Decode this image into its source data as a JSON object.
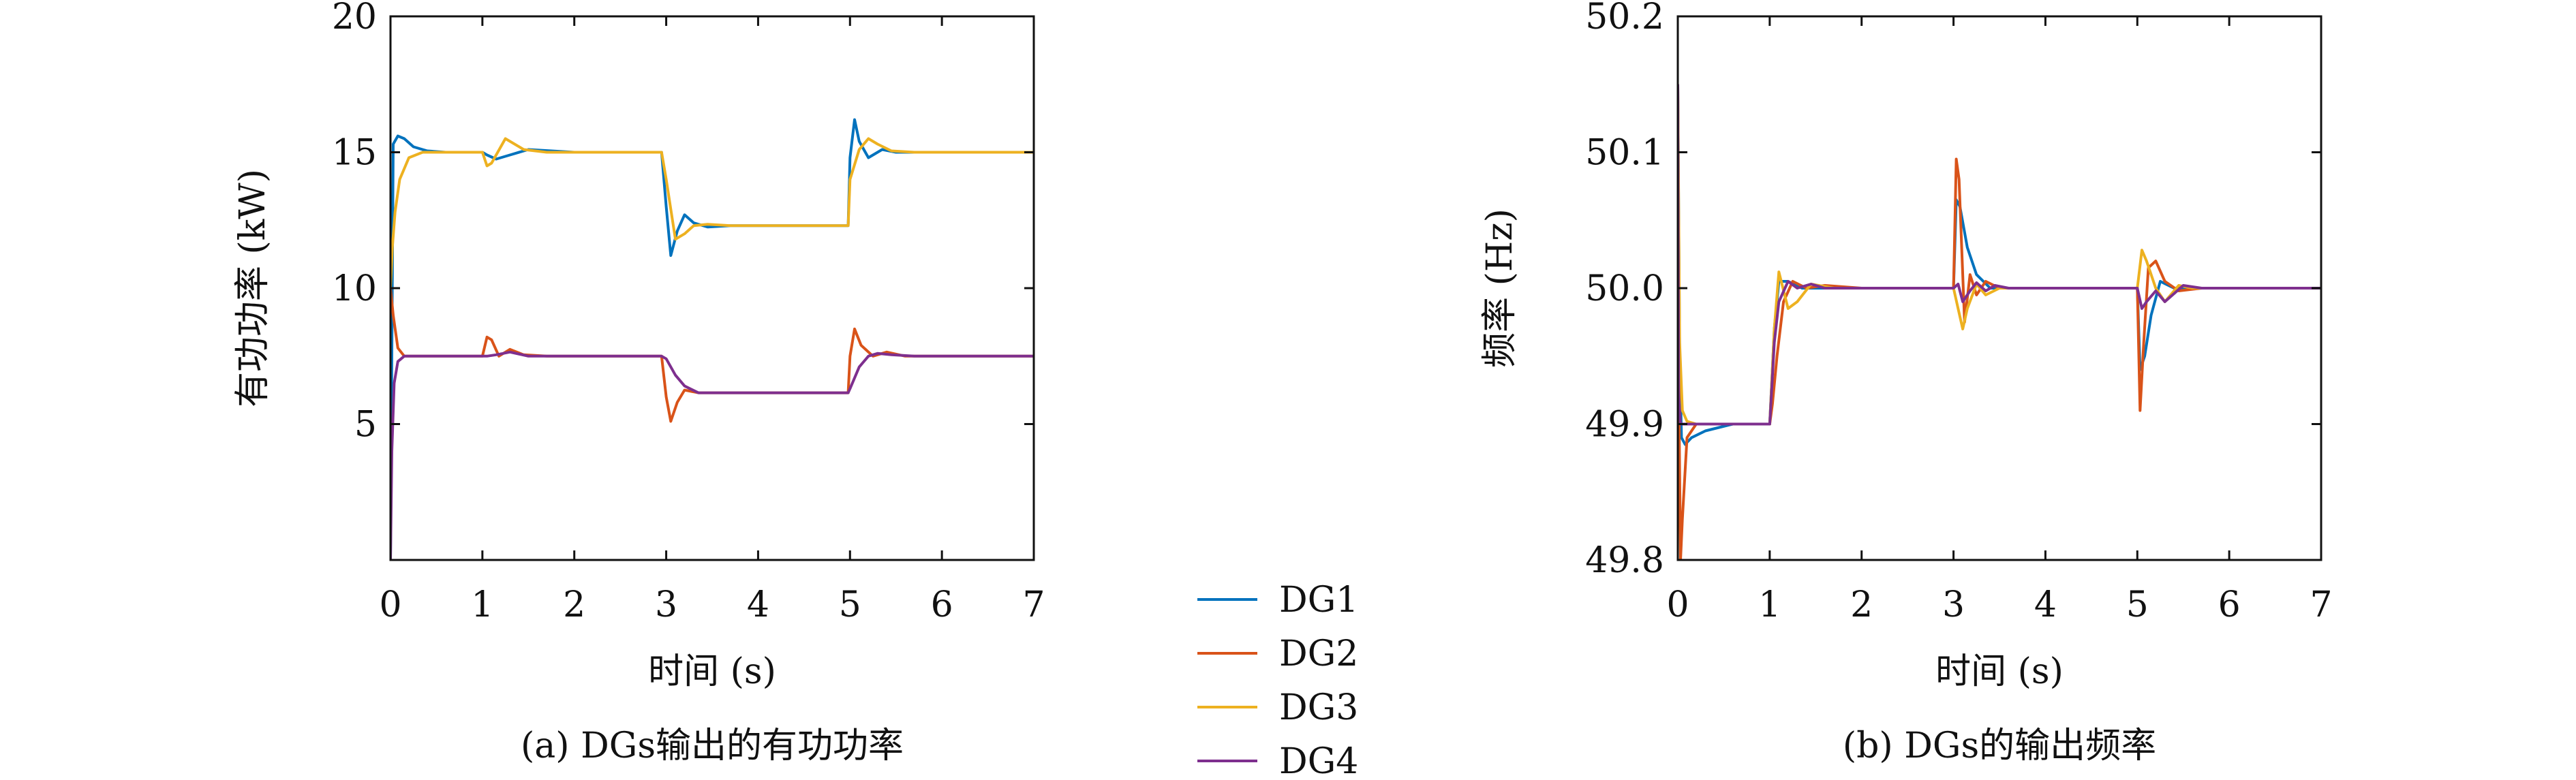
{
  "chart_data": [
    {
      "type": "line",
      "panel": "a",
      "caption": "(a) DGs输出的有功功率",
      "xlabel": "时间 (s)",
      "ylabel": "有功功率 (kW)",
      "xlim": [
        0,
        7
      ],
      "ylim": [
        0,
        20
      ],
      "xticks": [
        "0",
        "1",
        "2",
        "3",
        "4",
        "5",
        "6",
        "7"
      ],
      "xtick_values": [
        0,
        1,
        2,
        3,
        4,
        5,
        6,
        7
      ],
      "yticks": [
        "5",
        "10",
        "15",
        "20"
      ],
      "ytick_values": [
        5,
        10,
        15,
        20
      ],
      "grid": false,
      "series": [
        {
          "name": "DG1",
          "color": "#0072BD",
          "x": [
            0,
            0.03,
            0.08,
            0.15,
            0.25,
            0.4,
            0.6,
            1.0,
            1.05,
            1.15,
            1.3,
            1.5,
            2.0,
            2.95,
            3.0,
            3.05,
            3.12,
            3.2,
            3.3,
            3.45,
            3.7,
            4.0,
            4.98,
            5.0,
            5.05,
            5.1,
            5.2,
            5.35,
            5.5,
            5.8,
            7.0
          ],
          "y": [
            0,
            15.3,
            15.6,
            15.5,
            15.2,
            15.05,
            15.0,
            15.0,
            14.9,
            14.75,
            14.9,
            15.1,
            15.0,
            15.0,
            13.0,
            11.2,
            12.1,
            12.7,
            12.4,
            12.25,
            12.3,
            12.3,
            12.3,
            14.8,
            16.2,
            15.4,
            14.8,
            15.1,
            15.0,
            15.0,
            15.0
          ]
        },
        {
          "name": "DG2",
          "color": "#D95319",
          "x": [
            0,
            0.03,
            0.08,
            0.15,
            0.3,
            1.0,
            1.05,
            1.1,
            1.18,
            1.3,
            1.45,
            1.7,
            2.95,
            3.0,
            3.05,
            3.12,
            3.2,
            3.35,
            3.6,
            4.98,
            5.0,
            5.05,
            5.12,
            5.25,
            5.4,
            5.6,
            7.0
          ],
          "y": [
            10.0,
            9.0,
            7.8,
            7.5,
            7.5,
            7.5,
            8.2,
            8.1,
            7.5,
            7.75,
            7.55,
            7.5,
            7.5,
            6.0,
            5.1,
            5.8,
            6.25,
            6.15,
            6.15,
            6.15,
            7.5,
            8.5,
            7.9,
            7.5,
            7.65,
            7.5,
            7.5
          ]
        },
        {
          "name": "DG3",
          "color": "#EDB120",
          "x": [
            0,
            0.02,
            0.05,
            0.1,
            0.2,
            0.35,
            0.6,
            1.0,
            1.05,
            1.1,
            1.25,
            1.45,
            1.7,
            2.95,
            3.0,
            3.1,
            3.2,
            3.3,
            3.45,
            3.7,
            4.98,
            5.0,
            5.1,
            5.2,
            5.3,
            5.45,
            5.7,
            7.0
          ],
          "y": [
            10.0,
            11.5,
            12.8,
            14.0,
            14.8,
            15.0,
            15.0,
            15.0,
            14.5,
            14.6,
            15.5,
            15.1,
            15.0,
            15.0,
            14.0,
            11.8,
            12.0,
            12.3,
            12.35,
            12.3,
            12.3,
            14.0,
            15.1,
            15.5,
            15.3,
            15.05,
            15.0,
            15.0
          ]
        },
        {
          "name": "DG4",
          "color": "#7E2F8E",
          "x": [
            0,
            0.015,
            0.04,
            0.08,
            0.15,
            0.3,
            1.0,
            1.05,
            1.15,
            1.3,
            1.5,
            2.95,
            3.0,
            3.1,
            3.2,
            3.35,
            3.5,
            3.7,
            4.98,
            5.0,
            5.1,
            5.2,
            5.3,
            5.45,
            5.7,
            7.0
          ],
          "y": [
            0,
            4.0,
            6.5,
            7.3,
            7.5,
            7.5,
            7.5,
            7.5,
            7.55,
            7.65,
            7.5,
            7.5,
            7.4,
            6.8,
            6.4,
            6.15,
            6.15,
            6.15,
            6.15,
            6.3,
            7.1,
            7.5,
            7.6,
            7.55,
            7.5,
            7.5
          ]
        }
      ]
    },
    {
      "type": "line",
      "panel": "b",
      "caption": "(b) DGs的输出频率",
      "xlabel": "时间 (s)",
      "ylabel": "频率 (Hz)",
      "xlim": [
        0,
        7
      ],
      "ylim": [
        49.8,
        50.2
      ],
      "xticks": [
        "0",
        "1",
        "2",
        "3",
        "4",
        "5",
        "6",
        "7"
      ],
      "xtick_values": [
        0,
        1,
        2,
        3,
        4,
        5,
        6,
        7
      ],
      "yticks": [
        "49.8",
        "49.9",
        "50.0",
        "50.1",
        "50.2"
      ],
      "ytick_values": [
        49.8,
        49.9,
        50.0,
        50.1,
        50.2
      ],
      "grid": false,
      "series": [
        {
          "name": "DG1",
          "color": "#0072BD",
          "x": [
            0,
            0.02,
            0.04,
            0.08,
            0.15,
            0.3,
            0.6,
            1.0,
            1.05,
            1.1,
            1.2,
            1.35,
            1.6,
            3.0,
            3.03,
            3.07,
            3.15,
            3.25,
            3.4,
            3.6,
            4.0,
            5.0,
            5.03,
            5.08,
            5.15,
            5.25,
            5.4,
            5.6,
            6.0,
            7.0
          ],
          "y": [
            50.15,
            49.95,
            49.89,
            49.885,
            49.89,
            49.895,
            49.9,
            49.9,
            49.97,
            50.005,
            50.005,
            50.0,
            50.0,
            50.0,
            50.065,
            50.06,
            50.03,
            50.01,
            50.0,
            50.0,
            50.0,
            50.0,
            49.94,
            49.95,
            49.98,
            50.005,
            50.0,
            50.0,
            50.0,
            50.0
          ]
        },
        {
          "name": "DG2",
          "color": "#D95319",
          "x": [
            0,
            0.015,
            0.03,
            0.05,
            0.1,
            0.2,
            0.4,
            1.0,
            1.03,
            1.08,
            1.15,
            1.25,
            1.4,
            1.6,
            2.0,
            3.0,
            3.03,
            3.06,
            3.12,
            3.18,
            3.25,
            3.35,
            3.5,
            3.8,
            4.5,
            5.0,
            5.03,
            5.07,
            5.12,
            5.2,
            5.3,
            5.45,
            5.7,
            6.0,
            7.0
          ],
          "y": [
            50.15,
            49.9,
            49.8,
            49.83,
            49.89,
            49.9,
            49.9,
            49.9,
            49.915,
            49.95,
            49.99,
            50.005,
            50.0,
            50.002,
            50.0,
            50.0,
            50.095,
            50.08,
            49.975,
            50.01,
            49.995,
            50.005,
            50.0,
            50.0,
            50.0,
            50.0,
            49.91,
            49.96,
            50.015,
            50.02,
            50.005,
            49.998,
            50.0,
            50.0,
            50.0
          ]
        },
        {
          "name": "DG3",
          "color": "#EDB120",
          "x": [
            0,
            0.02,
            0.05,
            0.1,
            0.2,
            0.4,
            1.0,
            1.05,
            1.1,
            1.2,
            1.3,
            1.45,
            1.7,
            3.0,
            3.05,
            3.1,
            3.15,
            3.25,
            3.35,
            3.5,
            3.8,
            5.0,
            5.05,
            5.1,
            5.2,
            5.3,
            5.45,
            5.6,
            6.0,
            7.0
          ],
          "y": [
            50.15,
            49.96,
            49.91,
            49.902,
            49.9,
            49.9,
            49.9,
            49.97,
            50.012,
            49.985,
            49.99,
            50.003,
            50.0,
            50.0,
            49.985,
            49.97,
            49.985,
            50.003,
            49.995,
            50.0,
            50.0,
            50.0,
            50.028,
            50.02,
            50.0,
            49.99,
            50.002,
            50.0,
            50.0,
            50.0
          ]
        },
        {
          "name": "DG4",
          "color": "#7E2F8E",
          "x": [
            0,
            0.01,
            0.03,
            0.08,
            0.2,
            1.0,
            1.05,
            1.1,
            1.2,
            1.3,
            1.45,
            1.6,
            3.0,
            3.05,
            3.1,
            3.18,
            3.25,
            3.35,
            3.45,
            3.6,
            5.0,
            5.05,
            5.1,
            5.2,
            5.3,
            5.4,
            5.5,
            5.7,
            7.0
          ],
          "y": [
            50.15,
            49.92,
            49.9,
            49.9,
            49.9,
            49.9,
            49.96,
            49.99,
            50.005,
            50.0,
            50.003,
            50.0,
            50.0,
            50.003,
            49.99,
            49.998,
            50.004,
            49.998,
            50.002,
            50.0,
            50.0,
            49.985,
            49.99,
            49.998,
            49.99,
            49.996,
            50.002,
            50.0,
            50.0
          ]
        }
      ]
    }
  ],
  "legend": {
    "position": "between panels, bottom",
    "items": [
      "DG1",
      "DG2",
      "DG3",
      "DG4"
    ]
  }
}
